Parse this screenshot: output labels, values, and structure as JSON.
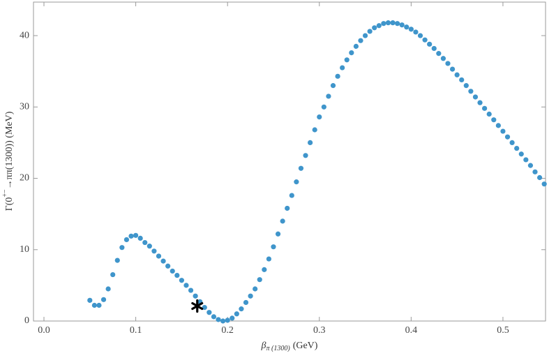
{
  "chart_data": {
    "type": "scatter",
    "x_label": {
      "symbol": "β",
      "subscript": "π (1300)",
      "unit": "(GeV)"
    },
    "y_label": {
      "start": "Γ(0",
      "superscript": "+−",
      "end": "→ππ(1300)) (MeV)"
    },
    "xlim": [
      -0.0114,
      0.5464
    ],
    "ylim": [
      0,
      44.7
    ],
    "xticks": [
      {
        "value": 0,
        "label": "0.0"
      },
      0.1,
      0.2,
      0.3,
      0.4,
      0.5
    ],
    "yticks": [
      0,
      10,
      20,
      30,
      40
    ],
    "grid": false,
    "series": [
      {
        "color": "#3f95cb",
        "marker": "circle",
        "x": [
          0.05,
          0.055,
          0.06,
          0.065,
          0.07,
          0.075,
          0.08,
          0.085,
          0.09,
          0.095,
          0.1,
          0.105,
          0.11,
          0.115,
          0.12,
          0.125,
          0.13,
          0.135,
          0.14,
          0.145,
          0.15,
          0.155,
          0.16,
          0.165,
          0.17,
          0.175,
          0.18,
          0.185,
          0.19,
          0.195,
          0.2,
          0.205,
          0.21,
          0.215,
          0.22,
          0.225,
          0.23,
          0.235,
          0.24,
          0.245,
          0.25,
          0.255,
          0.26,
          0.265,
          0.27,
          0.275,
          0.28,
          0.285,
          0.29,
          0.295,
          0.3,
          0.305,
          0.31,
          0.315,
          0.32,
          0.325,
          0.33,
          0.335,
          0.34,
          0.345,
          0.35,
          0.355,
          0.36,
          0.365,
          0.37,
          0.375,
          0.38,
          0.385,
          0.39,
          0.395,
          0.4,
          0.405,
          0.41,
          0.415,
          0.42,
          0.425,
          0.43,
          0.435,
          0.44,
          0.445,
          0.45,
          0.455,
          0.46,
          0.465,
          0.47,
          0.475,
          0.48,
          0.485,
          0.49,
          0.495,
          0.5,
          0.505,
          0.51,
          0.515,
          0.52,
          0.525,
          0.53,
          0.535,
          0.54,
          0.545
        ],
        "values": [
          2.9,
          2.2,
          2.2,
          3.0,
          4.5,
          6.5,
          8.5,
          10.3,
          11.4,
          11.9,
          12.0,
          11.6,
          11.0,
          10.5,
          9.8,
          9.1,
          8.4,
          7.7,
          7.0,
          6.4,
          5.7,
          5.0,
          4.3,
          3.5,
          2.7,
          1.9,
          1.2,
          0.6,
          0.2,
          0.0,
          0.1,
          0.4,
          1.0,
          1.7,
          2.6,
          3.5,
          4.5,
          5.8,
          7.2,
          8.7,
          10.4,
          12.2,
          14.0,
          15.8,
          17.6,
          19.5,
          21.4,
          23.2,
          25.0,
          26.8,
          28.6,
          30.0,
          31.5,
          33.0,
          34.3,
          35.5,
          36.6,
          37.6,
          38.5,
          39.3,
          40.0,
          40.6,
          41.1,
          41.4,
          41.7,
          41.8,
          41.8,
          41.7,
          41.5,
          41.2,
          40.9,
          40.5,
          40.0,
          39.4,
          38.8,
          38.2,
          37.5,
          36.8,
          36.1,
          35.3,
          34.5,
          33.8,
          33.0,
          32.2,
          31.4,
          30.6,
          29.8,
          29.0,
          28.2,
          27.4,
          26.6,
          25.8,
          25.0,
          24.2,
          23.4,
          22.6,
          21.8,
          20.9,
          20.1,
          19.2
        ]
      },
      {
        "color": "#000000",
        "marker": "star",
        "x": [
          0.167
        ],
        "values": [
          2.1
        ]
      }
    ]
  }
}
